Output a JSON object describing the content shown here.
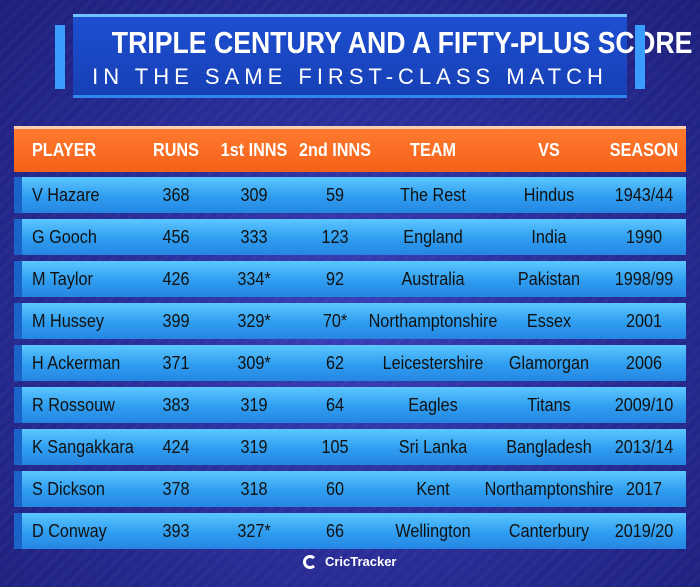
{
  "title": {
    "line1": "TRIPLE CENTURY AND A FIFTY-PLUS SCORE",
    "line2": "IN THE SAME FIRST-CLASS MATCH"
  },
  "table": {
    "headers": [
      "PLAYER",
      "RUNS",
      "1st INNS",
      "2nd INNS",
      "TEAM",
      "VS",
      "SEASON"
    ],
    "rows": [
      [
        "V Hazare",
        "368",
        "309",
        "59",
        "The Rest",
        "Hindus",
        "1943/44"
      ],
      [
        "G Gooch",
        "456",
        "333",
        "123",
        "England",
        "India",
        "1990"
      ],
      [
        "M Taylor",
        "426",
        "334*",
        "92",
        "Australia",
        "Pakistan",
        "1998/99"
      ],
      [
        "M Hussey",
        "399",
        "329*",
        "70*",
        "Northamptonshire",
        "Essex",
        "2001"
      ],
      [
        "H Ackerman",
        "371",
        "309*",
        "62",
        "Leicestershire",
        "Glamorgan",
        "2006"
      ],
      [
        "R Rossouw",
        "383",
        "319",
        "64",
        "Eagles",
        "Titans",
        "2009/10"
      ],
      [
        "K Sangakkara",
        "424",
        "319",
        "105",
        "Sri Lanka",
        "Bangladesh",
        "2013/14"
      ],
      [
        "S Dickson",
        "378",
        "318",
        "60",
        "Kent",
        "Northamptonshire",
        "2017"
      ],
      [
        "D Conway",
        "393",
        "327*",
        "66",
        "Wellington",
        "Canterbury",
        "2019/20"
      ]
    ]
  },
  "footer": {
    "brand": "CricTracker",
    "logo_icon": "crictracker-logo-icon"
  },
  "colors": {
    "background": "#2a2e9a",
    "title_banner": "#1d4fd1",
    "header_row": "#f4621a",
    "data_row": "#2f9df0",
    "accent_light": "#6fc2ff"
  }
}
